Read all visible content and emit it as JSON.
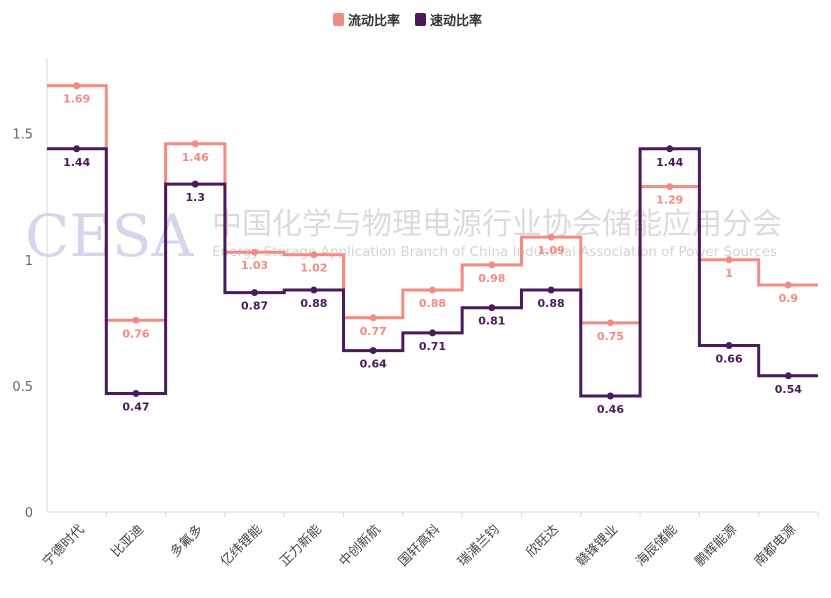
{
  "chart_data": {
    "type": "line",
    "step": true,
    "categories": [
      "宁德时代",
      "比亚迪",
      "多氟多",
      "亿纬锂能",
      "正力新能",
      "中创新航",
      "国轩高科",
      "瑞浦兰钧",
      "欣旺达",
      "赣锋锂业",
      "海辰储能",
      "鹏辉能源",
      "南都电源"
    ],
    "series": [
      {
        "name": "流动比率",
        "color": "#f28b82",
        "values": [
          1.69,
          0.76,
          1.46,
          1.03,
          1.02,
          0.77,
          0.88,
          0.98,
          1.09,
          0.75,
          1.29,
          1,
          0.9
        ]
      },
      {
        "name": "速动比率",
        "color": "#4b1a5c",
        "values": [
          1.44,
          0.47,
          1.3,
          0.87,
          0.88,
          0.64,
          0.71,
          0.81,
          0.88,
          0.46,
          1.44,
          0.66,
          0.54
        ]
      }
    ],
    "ylim": [
      0,
      1.8
    ],
    "yticks": [
      "0",
      "0.5",
      "1",
      "1.5"
    ],
    "legend": "top-center",
    "grid": false
  },
  "watermark": {
    "logo": "CESA",
    "name_cn": "中国化学与物理电源行业协会储能应用分会",
    "name_en": "Energy Storage Application Branch of China Industrial Association of Power Sources"
  }
}
